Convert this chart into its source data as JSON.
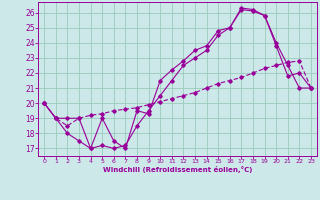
{
  "xlabel": "Windchill (Refroidissement éolien,°C)",
  "bg_color": "#cce8e8",
  "grid_color": "#99ccbb",
  "line_color": "#990099",
  "xlim": [
    -0.5,
    23.5
  ],
  "ylim": [
    16.5,
    26.7
  ],
  "xticks": [
    0,
    1,
    2,
    3,
    4,
    5,
    6,
    7,
    8,
    9,
    10,
    11,
    12,
    13,
    14,
    15,
    16,
    17,
    18,
    19,
    20,
    21,
    22,
    23
  ],
  "yticks": [
    17,
    18,
    19,
    20,
    21,
    22,
    23,
    24,
    25,
    26
  ],
  "curve1_x": [
    0,
    1,
    2,
    3,
    4,
    5,
    6,
    7,
    8,
    9,
    10,
    11,
    12,
    13,
    14,
    15,
    16,
    17,
    18,
    19,
    20,
    21,
    22,
    23
  ],
  "curve1_y": [
    20.0,
    19.0,
    18.0,
    17.5,
    17.0,
    17.2,
    17.0,
    17.2,
    18.5,
    19.5,
    20.5,
    21.5,
    22.5,
    23.0,
    23.5,
    24.5,
    25.0,
    26.2,
    26.1,
    25.8,
    24.0,
    22.5,
    21.0,
    21.0
  ],
  "curve2_x": [
    0,
    1,
    2,
    3,
    4,
    5,
    6,
    7,
    8,
    9,
    10,
    11,
    12,
    13,
    14,
    15,
    16,
    17,
    18,
    19,
    20,
    21,
    22,
    23
  ],
  "curve2_y": [
    20.0,
    19.0,
    19.0,
    19.0,
    17.0,
    19.0,
    17.5,
    17.0,
    19.5,
    19.3,
    21.5,
    22.2,
    22.8,
    23.5,
    23.8,
    24.8,
    25.0,
    26.3,
    26.2,
    25.8,
    23.8,
    21.8,
    22.0,
    21.0
  ],
  "curve3_x": [
    0,
    1,
    2,
    3,
    4,
    5,
    6,
    7,
    8,
    9,
    10,
    11,
    12,
    13,
    14,
    15,
    16,
    17,
    18,
    19,
    20,
    21,
    22,
    23
  ],
  "curve3_y": [
    20.0,
    19.0,
    18.5,
    19.0,
    19.2,
    19.3,
    19.5,
    19.6,
    19.7,
    19.9,
    20.1,
    20.3,
    20.5,
    20.7,
    21.0,
    21.3,
    21.5,
    21.7,
    22.0,
    22.3,
    22.5,
    22.7,
    22.8,
    21.0
  ]
}
